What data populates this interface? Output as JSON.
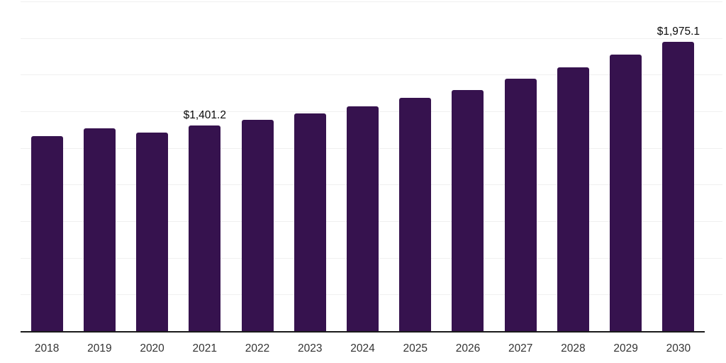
{
  "chart_data": {
    "type": "bar",
    "title": "",
    "xlabel": "",
    "ylabel": "",
    "categories": [
      "2018",
      "2019",
      "2020",
      "2021",
      "2022",
      "2023",
      "2024",
      "2025",
      "2026",
      "2027",
      "2028",
      "2029",
      "2030"
    ],
    "values": [
      1330,
      1384,
      1357,
      1401.2,
      1441,
      1484,
      1533,
      1590,
      1646,
      1721,
      1799,
      1885,
      1975.1
    ],
    "labeled_points": [
      {
        "category": "2021",
        "label": "$1,401.2"
      },
      {
        "category": "2030",
        "label": "$1,975.1"
      }
    ],
    "ylim": [
      0,
      2250
    ],
    "gridline_step": 250,
    "grid": "horizontal",
    "legend": "none",
    "colors": {
      "bar": "#36124E",
      "axis_line": "#1a1a1a",
      "gridline": "#f0f0f0",
      "data_label": "#0a0a0a",
      "tick_label": "#333333"
    }
  }
}
